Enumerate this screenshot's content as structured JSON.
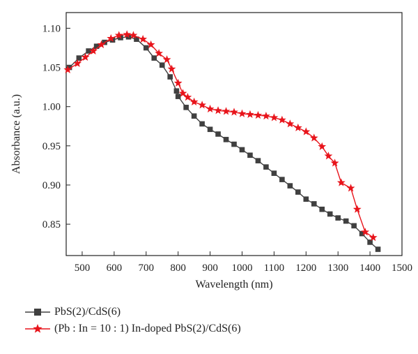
{
  "chart_data": {
    "type": "line",
    "xlabel": "Wavelength (nm)",
    "ylabel": "Absorbance (a.u.)",
    "xlim": [
      450,
      1500
    ],
    "ylim": [
      0.81,
      1.12
    ],
    "xticks": [
      500,
      600,
      700,
      800,
      900,
      1000,
      1100,
      1200,
      1300,
      1400,
      1500
    ],
    "yticks": [
      0.85,
      0.9,
      0.95,
      1.0,
      1.05,
      1.1
    ],
    "ytick_labels": [
      "0.85",
      "0.90",
      "0.95",
      "1.00",
      "1.05",
      "1.10"
    ],
    "grid": false,
    "legend_position": "bottom",
    "series": [
      {
        "name": "PbS(2)/CdS(6)",
        "color": "#404040",
        "marker": "square",
        "x": [
          460,
          490,
          520,
          545,
          570,
          595,
          620,
          645,
          670,
          700,
          725,
          750,
          775,
          795,
          800,
          825,
          850,
          875,
          900,
          925,
          950,
          975,
          1000,
          1025,
          1050,
          1075,
          1100,
          1125,
          1150,
          1175,
          1200,
          1225,
          1250,
          1275,
          1300,
          1325,
          1350,
          1375,
          1400,
          1425
        ],
        "values": [
          1.05,
          1.062,
          1.071,
          1.077,
          1.082,
          1.085,
          1.088,
          1.089,
          1.086,
          1.075,
          1.062,
          1.053,
          1.038,
          1.02,
          1.013,
          0.999,
          0.988,
          0.978,
          0.971,
          0.965,
          0.958,
          0.952,
          0.945,
          0.938,
          0.931,
          0.923,
          0.915,
          0.907,
          0.899,
          0.891,
          0.882,
          0.876,
          0.869,
          0.863,
          0.858,
          0.854,
          0.848,
          0.838,
          0.827,
          0.818
        ]
      },
      {
        "name": "(Pb : In = 10 : 1) In-doped PbS(2)/CdS(6)",
        "color": "#e8141b",
        "marker": "star",
        "x": [
          455,
          485,
          510,
          535,
          560,
          590,
          615,
          640,
          660,
          690,
          715,
          740,
          765,
          780,
          800,
          815,
          830,
          850,
          875,
          900,
          925,
          950,
          975,
          1000,
          1025,
          1050,
          1075,
          1100,
          1125,
          1150,
          1175,
          1200,
          1225,
          1250,
          1270,
          1290,
          1310,
          1340,
          1360,
          1385,
          1410
        ],
        "values": [
          1.047,
          1.055,
          1.063,
          1.071,
          1.079,
          1.087,
          1.091,
          1.092,
          1.091,
          1.086,
          1.079,
          1.068,
          1.06,
          1.048,
          1.03,
          1.017,
          1.012,
          1.006,
          1.002,
          0.997,
          0.995,
          0.994,
          0.993,
          0.991,
          0.99,
          0.989,
          0.988,
          0.986,
          0.983,
          0.978,
          0.973,
          0.968,
          0.96,
          0.949,
          0.937,
          0.928,
          0.903,
          0.896,
          0.869,
          0.84,
          0.833
        ]
      }
    ]
  }
}
